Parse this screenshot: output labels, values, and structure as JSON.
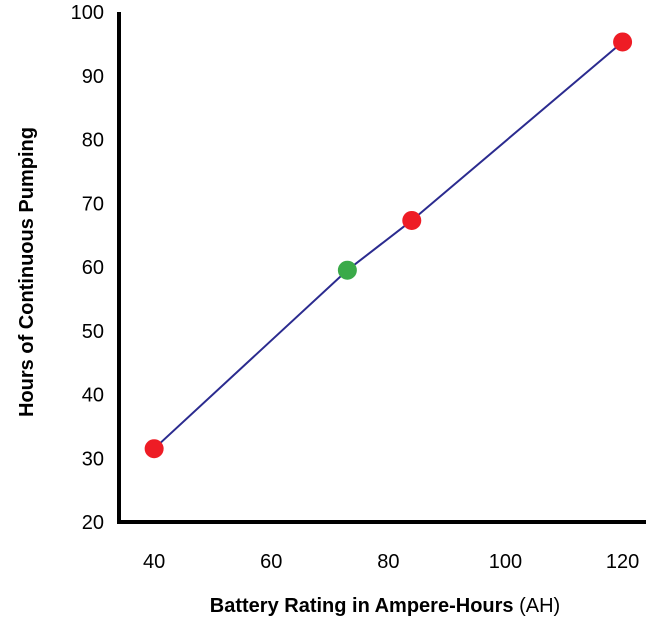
{
  "chart_data": {
    "type": "line",
    "xlabel": "Battery Rating in Ampere-Hours",
    "xlabel_unit": "(AH)",
    "ylabel": "Hours of Continuous Pumping",
    "xlim": [
      34,
      124
    ],
    "ylim": [
      20,
      100
    ],
    "x_ticks": [
      "40",
      "60",
      "80",
      "100",
      "120"
    ],
    "y_ticks": [
      "20",
      "30",
      "40",
      "50",
      "60",
      "70",
      "80",
      "90",
      "100"
    ],
    "grid": false,
    "series": [
      {
        "color": "#2b2b8f",
        "points": [
          {
            "x": 40,
            "y": 31.5,
            "color": "#ee1c25"
          },
          {
            "x": 73,
            "y": 59.5,
            "color": "#3aaa49"
          },
          {
            "x": 84,
            "y": 67.3,
            "color": "#ee1c25"
          },
          {
            "x": 120,
            "y": 95.3,
            "color": "#ee1c25"
          }
        ]
      }
    ]
  }
}
